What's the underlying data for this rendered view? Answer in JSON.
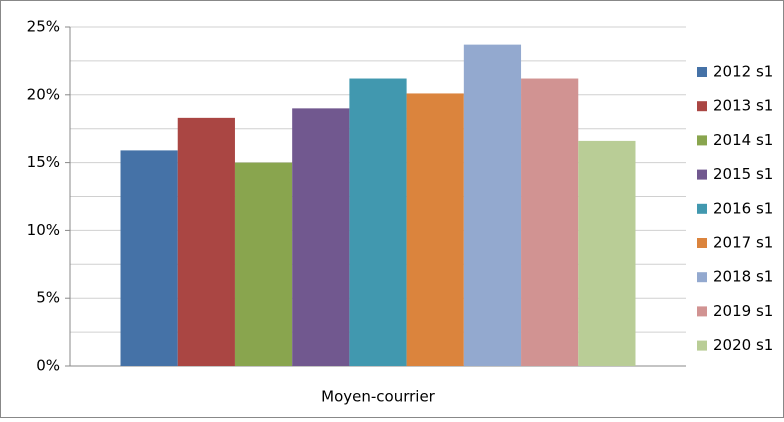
{
  "chart_data": {
    "type": "bar",
    "categories": [
      "Moyen-courrier"
    ],
    "series": [
      {
        "name": "2012 s1",
        "color": "#4572a7",
        "values": [
          15.9
        ]
      },
      {
        "name": "2013 s1",
        "color": "#aa4643",
        "values": [
          18.3
        ]
      },
      {
        "name": "2014 s1",
        "color": "#89a54e",
        "values": [
          15.0
        ]
      },
      {
        "name": "2015 s1",
        "color": "#71588f",
        "values": [
          19.0
        ]
      },
      {
        "name": "2016 s1",
        "color": "#4198af",
        "values": [
          21.2
        ]
      },
      {
        "name": "2017 s1",
        "color": "#db843d",
        "values": [
          20.1
        ]
      },
      {
        "name": "2018 s1",
        "color": "#93a9cf",
        "values": [
          23.7
        ]
      },
      {
        "name": "2019 s1",
        "color": "#d19392",
        "values": [
          21.2
        ]
      },
      {
        "name": "2020 s1",
        "color": "#b9cd96",
        "values": [
          16.6
        ]
      }
    ],
    "ylim": [
      0,
      25
    ],
    "yticks": [
      {
        "value": 0,
        "label": "0%"
      },
      {
        "value": 5,
        "label": "5%"
      },
      {
        "value": 10,
        "label": "10%"
      },
      {
        "value": 15,
        "label": "15%"
      },
      {
        "value": 20,
        "label": "20%"
      },
      {
        "value": 25,
        "label": "25%"
      }
    ],
    "minor_yticks": [
      2.5,
      7.5,
      12.5,
      17.5,
      22.5
    ],
    "grid": true,
    "legend": "right"
  }
}
